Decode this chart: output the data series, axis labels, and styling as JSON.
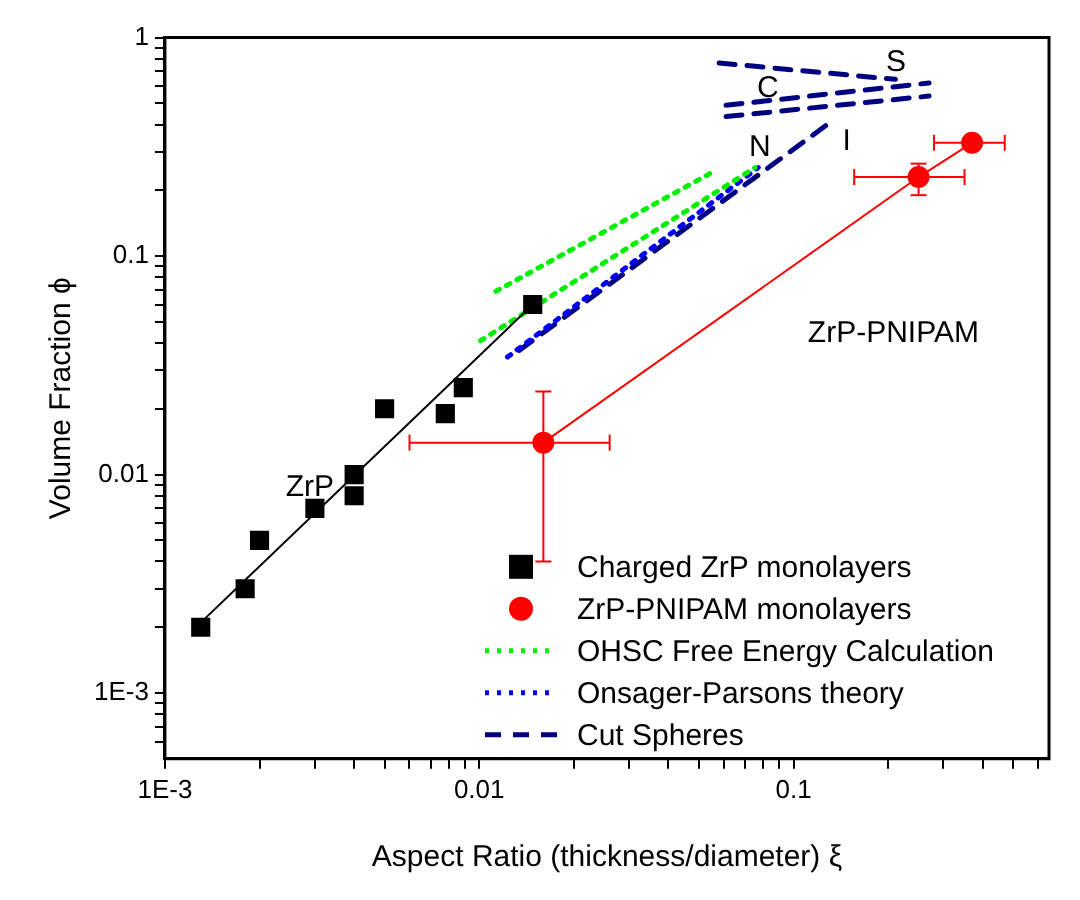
{
  "chart_data": {
    "type": "scatter",
    "xlabel": "Aspect Ratio (thickness/diameter) ξ",
    "ylabel": "Volume Fraction ϕ",
    "log": "xy",
    "grid": false,
    "legend": "bottom right",
    "xlim": [
      0.001,
      0.65
    ],
    "ylim": [
      0.0005,
      1
    ],
    "xticks": [
      {
        "value": 0.001,
        "label": "1E-3"
      },
      {
        "value": 0.002,
        "label": null
      },
      {
        "value": 0.003,
        "label": null
      },
      {
        "value": 0.004,
        "label": null
      },
      {
        "value": 0.005,
        "label": null
      },
      {
        "value": 0.006,
        "label": null
      },
      {
        "value": 0.007,
        "label": null
      },
      {
        "value": 0.008,
        "label": null
      },
      {
        "value": 0.009,
        "label": null
      },
      0.01,
      {
        "value": 0.02,
        "label": null
      },
      {
        "value": 0.03,
        "label": null
      },
      {
        "value": 0.04,
        "label": null
      },
      {
        "value": 0.05,
        "label": null
      },
      {
        "value": 0.06,
        "label": null
      },
      {
        "value": 0.07,
        "label": null
      },
      {
        "value": 0.08,
        "label": null
      },
      {
        "value": 0.09,
        "label": null
      },
      0.1,
      {
        "value": 0.2,
        "label": null
      },
      {
        "value": 0.3,
        "label": null
      },
      {
        "value": 0.4,
        "label": null
      },
      {
        "value": 0.5,
        "label": null
      },
      {
        "value": 0.6,
        "label": null
      }
    ],
    "yticks": [
      {
        "value": 0.0006,
        "label": null
      },
      {
        "value": 0.0007,
        "label": null
      },
      {
        "value": 0.0008,
        "label": null
      },
      {
        "value": 0.0009,
        "label": null
      },
      {
        "value": 0.001,
        "label": "1E-3"
      },
      {
        "value": 0.002,
        "label": null
      },
      {
        "value": 0.003,
        "label": null
      },
      {
        "value": 0.004,
        "label": null
      },
      {
        "value": 0.005,
        "label": null
      },
      {
        "value": 0.006,
        "label": null
      },
      {
        "value": 0.007,
        "label": null
      },
      {
        "value": 0.008,
        "label": null
      },
      {
        "value": 0.009,
        "label": null
      },
      0.01,
      {
        "value": 0.02,
        "label": null
      },
      {
        "value": 0.03,
        "label": null
      },
      {
        "value": 0.04,
        "label": null
      },
      {
        "value": 0.05,
        "label": null
      },
      {
        "value": 0.06,
        "label": null
      },
      {
        "value": 0.07,
        "label": null
      },
      {
        "value": 0.08,
        "label": null
      },
      {
        "value": 0.09,
        "label": null
      },
      0.1,
      {
        "value": 0.2,
        "label": null
      },
      {
        "value": 0.3,
        "label": null
      },
      {
        "value": 0.4,
        "label": null
      },
      {
        "value": 0.5,
        "label": null
      },
      {
        "value": 0.6,
        "label": null
      },
      {
        "value": 0.7,
        "label": null
      },
      {
        "value": 0.8,
        "label": null
      },
      {
        "value": 0.9,
        "label": null
      },
      1
    ],
    "series": [
      {
        "name": "Charged ZrP monolayers",
        "marker": "square",
        "color": "#000000",
        "x": [
          0.0013,
          0.0018,
          0.002,
          0.003,
          0.004,
          0.004,
          0.005,
          0.0078,
          0.0089,
          0.0148
        ],
        "values": [
          0.002,
          0.003,
          0.005,
          0.007,
          0.01,
          0.008,
          0.02,
          0.019,
          0.025,
          0.06
        ]
      },
      {
        "type": "line",
        "marker": "none",
        "line_style": "solid",
        "color": "#000000",
        "x": [
          0.0013,
          0.0148
        ],
        "values": [
          0.0021,
          0.06
        ]
      },
      {
        "name": "ZrP-PNIPAM monolayers",
        "type": "line",
        "marker": "circle",
        "line_style": "solid",
        "color": "#ff0000",
        "x": [
          0.016,
          0.25,
          0.37
        ],
        "values": [
          0.014,
          0.23,
          0.33
        ],
        "errors": [
          [
            0.004,
            0.024
          ],
          [
            0.19,
            0.265
          ],
          null
        ],
        "xerrors": [
          [
            0.006,
            0.026
          ],
          [
            0.156,
            0.35
          ],
          [
            0.28,
            0.47
          ]
        ]
      },
      {
        "name": "OHSC Free Energy Calculation",
        "type": "line",
        "marker": "none",
        "line_style": "dotted",
        "color": "#00ee00",
        "x": [
          0.0101,
          0.0754
        ],
        "values": [
          0.041,
          0.254
        ]
      },
      {
        "type": "line",
        "marker": "none",
        "line_style": "dotted",
        "color": "#00ee00",
        "x": [
          0.0113,
          0.0552
        ],
        "values": [
          0.069,
          0.242
        ]
      },
      {
        "name": "Onsager-Parsons theory",
        "type": "line",
        "marker": "none",
        "line_style": "dotted",
        "color": "#0000ff",
        "x": [
          0.0123,
          0.0772
        ],
        "values": [
          0.0345,
          0.254
        ]
      },
      {
        "name": "Cut Spheres",
        "type": "line",
        "marker": "none",
        "line_style": "dashed",
        "color": "#000080",
        "x": [
          0.0134,
          0.131
        ],
        "values": [
          0.037,
          0.41
        ]
      },
      {
        "type": "line",
        "marker": "none",
        "line_style": "dashed",
        "color": "#000080",
        "x": [
          0.058,
          0.211
        ],
        "values": [
          0.765,
          0.644
        ]
      },
      {
        "type": "line",
        "marker": "none",
        "line_style": "dashed",
        "color": "#000080",
        "x": [
          0.061,
          0.27
        ],
        "values": [
          0.49,
          0.62
        ]
      },
      {
        "type": "line",
        "marker": "none",
        "line_style": "dashed",
        "color": "#000080",
        "x": [
          0.061,
          0.27
        ],
        "values": [
          0.435,
          0.54
        ]
      }
    ],
    "annotations": [
      "C",
      "S",
      "N",
      "I",
      "ZrP",
      "ZrP-PNIPAM"
    ]
  }
}
